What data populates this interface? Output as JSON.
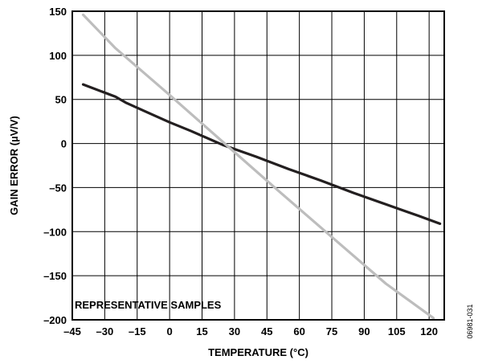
{
  "chart_data": {
    "type": "line",
    "xlabel": "TEMPERATURE (°C)",
    "ylabel": "GAIN ERROR (µV/V)",
    "xlim": [
      -45,
      127
    ],
    "ylim": [
      -200,
      150
    ],
    "xticks": [
      -45,
      -30,
      -15,
      0,
      15,
      30,
      45,
      60,
      75,
      90,
      105,
      120
    ],
    "yticks": [
      -200,
      -150,
      -100,
      -50,
      0,
      50,
      100,
      150
    ],
    "xtick_labels": [
      "–45",
      "–30",
      "–15",
      "0",
      "15",
      "30",
      "45",
      "60",
      "75",
      "90",
      "105",
      "120"
    ],
    "ytick_labels": [
      "–200",
      "–150",
      "–100",
      "–50",
      "0",
      "50",
      "100",
      "150"
    ],
    "grid": true,
    "annotation": "REPRESENTATIVE SAMPLES",
    "figure_id": "06981-031",
    "series": [
      {
        "color": "#231f20",
        "x": [
          -40,
          -25,
          -20,
          -10,
          0,
          10,
          25,
          40,
          55,
          70,
          85,
          100,
          115,
          125
        ],
        "y": [
          67,
          53,
          46,
          35,
          24,
          14,
          -2,
          -15,
          -29,
          -42,
          -56,
          -69,
          -82,
          -91
        ]
      },
      {
        "color": "#bdbdbd",
        "x": [
          -40,
          -25,
          0,
          25,
          50,
          75,
          100,
          122
        ],
        "y": [
          146,
          108,
          55,
          1,
          -53,
          -106,
          -159,
          -198
        ]
      }
    ]
  }
}
